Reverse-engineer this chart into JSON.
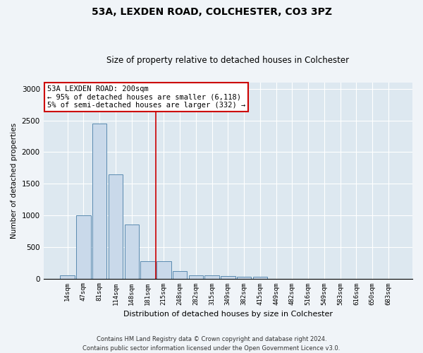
{
  "title1": "53A, LEXDEN ROAD, COLCHESTER, CO3 3PZ",
  "title2": "Size of property relative to detached houses in Colchester",
  "xlabel": "Distribution of detached houses by size in Colchester",
  "ylabel": "Number of detached properties",
  "categories": [
    "14sqm",
    "47sqm",
    "81sqm",
    "114sqm",
    "148sqm",
    "181sqm",
    "215sqm",
    "248sqm",
    "282sqm",
    "315sqm",
    "349sqm",
    "382sqm",
    "415sqm",
    "449sqm",
    "482sqm",
    "516sqm",
    "549sqm",
    "583sqm",
    "616sqm",
    "650sqm",
    "683sqm"
  ],
  "values": [
    50,
    1000,
    2450,
    1650,
    850,
    270,
    270,
    120,
    55,
    50,
    45,
    30,
    25,
    0,
    0,
    0,
    0,
    0,
    0,
    0,
    0
  ],
  "bar_color": "#c9d9ea",
  "bar_edge_color": "#5a8ab0",
  "vline_x_index": 5.5,
  "annotation_line1": "53A LEXDEN ROAD: 200sqm",
  "annotation_line2": "← 95% of detached houses are smaller (6,118)",
  "annotation_line3": "5% of semi-detached houses are larger (332) →",
  "annotation_box_color": "#ffffff",
  "annotation_box_edge_color": "#cc0000",
  "vline_color": "#cc0000",
  "ylim": [
    0,
    3100
  ],
  "yticks": [
    0,
    500,
    1000,
    1500,
    2000,
    2500,
    3000
  ],
  "footer1": "Contains HM Land Registry data © Crown copyright and database right 2024.",
  "footer2": "Contains public sector information licensed under the Open Government Licence v3.0.",
  "fig_bg_color": "#f0f4f8",
  "plot_bg_color": "#dde8f0"
}
